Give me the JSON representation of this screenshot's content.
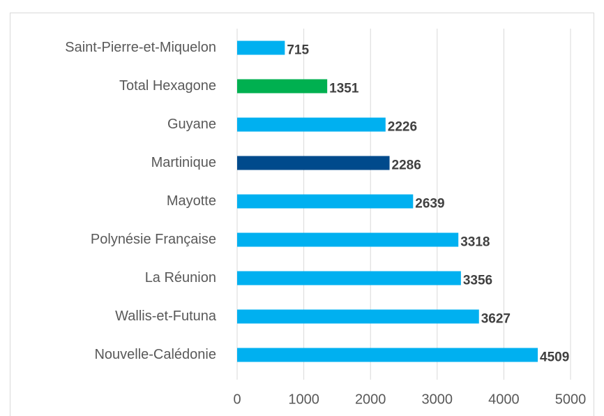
{
  "chart_data": {
    "type": "hbar",
    "categories": [
      "Saint-Pierre-et-Miquelon",
      "Total Hexagone",
      "Guyane",
      "Martinique",
      "Mayotte",
      "Polynésie Française",
      "La Réunion",
      "Wallis-et-Futuna",
      "Nouvelle-Calédonie"
    ],
    "values": [
      715,
      1351,
      2226,
      2286,
      2639,
      3318,
      3356,
      3627,
      4509
    ],
    "colors": [
      "#00b0f0",
      "#00b050",
      "#00b0f0",
      "#004a8c",
      "#00b0f0",
      "#00b0f0",
      "#00b0f0",
      "#00b0f0",
      "#00b0f0"
    ],
    "xlim": [
      0,
      5000
    ],
    "xticks": [
      0,
      1000,
      2000,
      3000,
      4000,
      5000
    ],
    "grid": true
  }
}
